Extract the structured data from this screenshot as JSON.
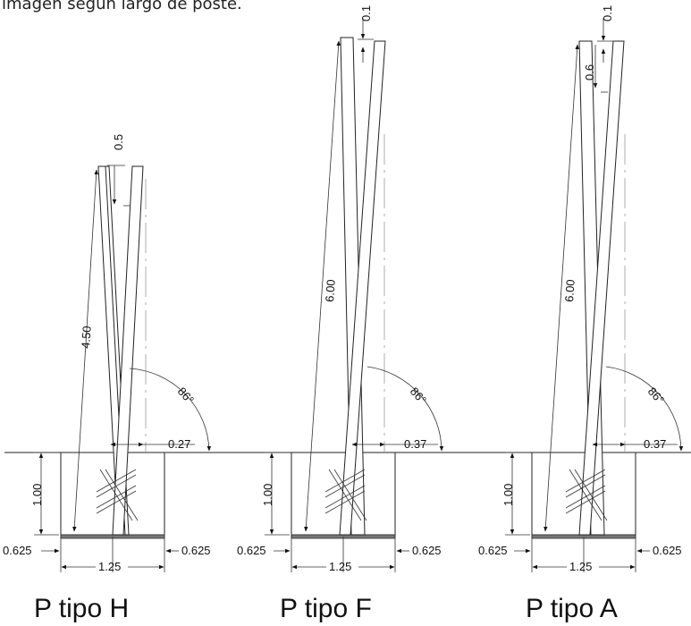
{
  "caption": "imagen según largo de poste.",
  "posts": [
    {
      "title": "P tipo H",
      "length": "4.50",
      "top_dim": "0.5",
      "angle": "86°",
      "offset": "0.27",
      "depth": "1.00",
      "left_margin": "0.625",
      "right_margin": "0.625",
      "base": "1.25"
    },
    {
      "title": "P tipo F",
      "length": "6.00",
      "top_dim": "0.1",
      "angle": "86°",
      "offset": "0.37",
      "depth": "1.00",
      "left_margin": "0.625",
      "right_margin": "0.625",
      "base": "1.25"
    },
    {
      "title": "P tipo A",
      "length": "6.00",
      "top_dim": "0.1",
      "top_dim2": "0.6",
      "angle": "86°",
      "offset": "0.37",
      "depth": "1.00",
      "left_margin": "0.625",
      "right_margin": "0.625",
      "base": "1.25"
    }
  ]
}
